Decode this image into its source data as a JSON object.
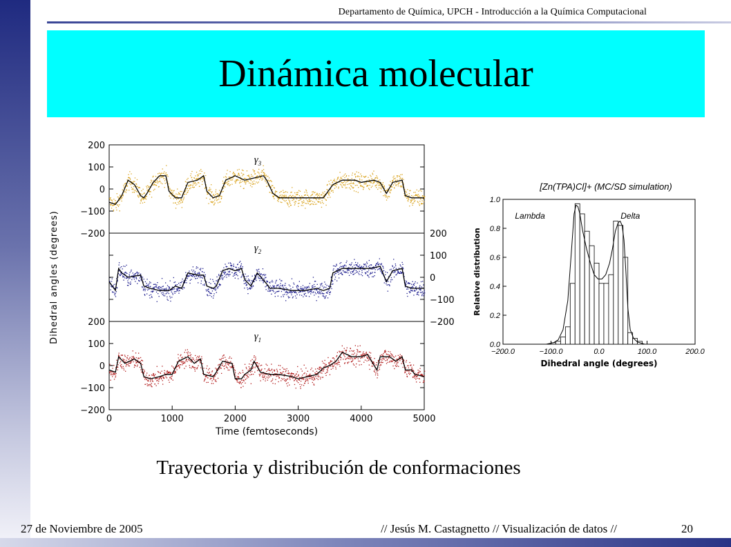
{
  "slide": {
    "header": "Departamento de Química, UPCH - Introducción a la Química Computacional",
    "title": "Dinámica molecular",
    "caption": "Trayectoria y distribución de conformaciones",
    "footer_date": "27 de Noviembre de 2005",
    "footer_author": "// Jesús M. Castagnetto // Visualización de datos //",
    "page_number": "20"
  },
  "chart_data": [
    {
      "type": "scatter",
      "ylabel": "Dihedral angles (degrees)",
      "xlabel": "Time (femtoseconds)",
      "xlim": [
        0,
        5000
      ],
      "x_ticks": [
        "0",
        "1000",
        "2000",
        "3000",
        "4000",
        "5000"
      ],
      "panels": [
        {
          "name": "γ3",
          "color": "#d9a21b",
          "ylim": [
            -200,
            200
          ],
          "y_ticks": [
            "200",
            "100",
            "0",
            "−100",
            "−200"
          ],
          "y_axis_side": "left",
          "trend": [
            [
              0,
              -60
            ],
            [
              100,
              -70
            ],
            [
              200,
              -30
            ],
            [
              300,
              40
            ],
            [
              400,
              20
            ],
            [
              500,
              -30
            ],
            [
              550,
              -40
            ],
            [
              600,
              -20
            ],
            [
              700,
              30
            ],
            [
              800,
              60
            ],
            [
              900,
              60
            ],
            [
              950,
              -10
            ],
            [
              1050,
              -40
            ],
            [
              1150,
              -40
            ],
            [
              1250,
              30
            ],
            [
              1400,
              40
            ],
            [
              1500,
              60
            ],
            [
              1550,
              -10
            ],
            [
              1650,
              -40
            ],
            [
              1750,
              -30
            ],
            [
              1850,
              40
            ],
            [
              2000,
              60
            ],
            [
              2150,
              40
            ],
            [
              2300,
              50
            ],
            [
              2450,
              60
            ],
            [
              2500,
              40
            ],
            [
              2600,
              -20
            ],
            [
              2700,
              -40
            ],
            [
              2800,
              -40
            ],
            [
              3000,
              -40
            ],
            [
              3100,
              -40
            ],
            [
              3250,
              -40
            ],
            [
              3400,
              -40
            ],
            [
              3550,
              20
            ],
            [
              3700,
              40
            ],
            [
              3900,
              40
            ],
            [
              4000,
              30
            ],
            [
              4200,
              40
            ],
            [
              4300,
              30
            ],
            [
              4400,
              -20
            ],
            [
              4500,
              30
            ],
            [
              4650,
              40
            ],
            [
              4700,
              -30
            ],
            [
              4800,
              -40
            ],
            [
              5000,
              -40
            ]
          ]
        },
        {
          "name": "γ2",
          "color": "#1a1a8c",
          "ylim": [
            -200,
            200
          ],
          "y_ticks": [
            "200",
            "100",
            "0",
            "−100",
            "−200"
          ],
          "y_axis_side": "right",
          "trend": [
            [
              0,
              -20
            ],
            [
              100,
              -60
            ],
            [
              150,
              40
            ],
            [
              200,
              20
            ],
            [
              300,
              0
            ],
            [
              500,
              10
            ],
            [
              550,
              -40
            ],
            [
              650,
              -50
            ],
            [
              800,
              -60
            ],
            [
              950,
              -60
            ],
            [
              1050,
              -40
            ],
            [
              1150,
              -50
            ],
            [
              1250,
              20
            ],
            [
              1400,
              10
            ],
            [
              1500,
              10
            ],
            [
              1550,
              -40
            ],
            [
              1650,
              -50
            ],
            [
              1700,
              -40
            ],
            [
              1800,
              30
            ],
            [
              1900,
              40
            ],
            [
              2000,
              30
            ],
            [
              2100,
              40
            ],
            [
              2150,
              -10
            ],
            [
              2250,
              -40
            ],
            [
              2350,
              20
            ],
            [
              2500,
              -30
            ],
            [
              2550,
              -50
            ],
            [
              2700,
              -50
            ],
            [
              2900,
              -60
            ],
            [
              3000,
              -60
            ],
            [
              3100,
              -60
            ],
            [
              3300,
              -50
            ],
            [
              3400,
              -60
            ],
            [
              3500,
              -50
            ],
            [
              3550,
              20
            ],
            [
              3700,
              40
            ],
            [
              3850,
              40
            ],
            [
              4000,
              40
            ],
            [
              4150,
              40
            ],
            [
              4300,
              50
            ],
            [
              4400,
              -20
            ],
            [
              4500,
              30
            ],
            [
              4650,
              40
            ],
            [
              4700,
              -40
            ],
            [
              4800,
              -50
            ],
            [
              5000,
              -50
            ]
          ]
        },
        {
          "name": "γ1",
          "color": "#b01818",
          "ylim": [
            -200,
            200
          ],
          "y_ticks": [
            "200",
            "100",
            "0",
            "−100",
            "−200"
          ],
          "y_axis_side": "left",
          "trend": [
            [
              0,
              -20
            ],
            [
              100,
              -30
            ],
            [
              150,
              40
            ],
            [
              250,
              10
            ],
            [
              400,
              30
            ],
            [
              500,
              10
            ],
            [
              550,
              -50
            ],
            [
              650,
              -60
            ],
            [
              800,
              -50
            ],
            [
              900,
              -40
            ],
            [
              1000,
              -40
            ],
            [
              1100,
              20
            ],
            [
              1250,
              40
            ],
            [
              1350,
              10
            ],
            [
              1450,
              30
            ],
            [
              1500,
              -40
            ],
            [
              1650,
              -50
            ],
            [
              1700,
              -30
            ],
            [
              1800,
              20
            ],
            [
              1950,
              10
            ],
            [
              2000,
              -60
            ],
            [
              2100,
              -60
            ],
            [
              2150,
              -40
            ],
            [
              2250,
              -20
            ],
            [
              2300,
              20
            ],
            [
              2400,
              -30
            ],
            [
              2550,
              -40
            ],
            [
              2700,
              -40
            ],
            [
              2900,
              -50
            ],
            [
              3000,
              -60
            ],
            [
              3150,
              -50
            ],
            [
              3300,
              -40
            ],
            [
              3400,
              -10
            ],
            [
              3500,
              0
            ],
            [
              3600,
              20
            ],
            [
              3700,
              60
            ],
            [
              3850,
              40
            ],
            [
              4000,
              40
            ],
            [
              4100,
              50
            ],
            [
              4250,
              -20
            ],
            [
              4300,
              40
            ],
            [
              4450,
              40
            ],
            [
              4550,
              20
            ],
            [
              4650,
              40
            ],
            [
              4700,
              -20
            ],
            [
              4800,
              -20
            ],
            [
              4850,
              -40
            ],
            [
              5000,
              -50
            ]
          ]
        }
      ]
    },
    {
      "type": "bar",
      "title": "[Zn(TPA)Cl]+ (MC/SD simulation)",
      "xlabel": "Dihedral angle (degrees)",
      "ylabel": "Relative distribution",
      "xlim": [
        -200,
        200
      ],
      "ylim": [
        0,
        1.0
      ],
      "x_ticks": [
        "−200.0",
        "−100.0",
        "0.0",
        "100.0",
        "200.0"
      ],
      "y_ticks": [
        "0.0",
        "0.2",
        "0.4",
        "0.6",
        "0.8",
        "1.0"
      ],
      "annotations": [
        "Lambda",
        "Delta"
      ],
      "bin_width": 10,
      "bins": [
        [
          -100,
          0.01
        ],
        [
          -90,
          0.02
        ],
        [
          -80,
          0.05
        ],
        [
          -70,
          0.12
        ],
        [
          -60,
          0.42
        ],
        [
          -50,
          0.97
        ],
        [
          -40,
          0.9
        ],
        [
          -30,
          0.78
        ],
        [
          -20,
          0.68
        ],
        [
          -10,
          0.56
        ],
        [
          0,
          0.42
        ],
        [
          10,
          0.42
        ],
        [
          20,
          0.48
        ],
        [
          30,
          0.85
        ],
        [
          40,
          0.82
        ],
        [
          50,
          0.6
        ],
        [
          60,
          0.08
        ],
        [
          70,
          0.04
        ],
        [
          80,
          0.02
        ]
      ],
      "fit_curve": [
        [
          -110,
          0.0
        ],
        [
          -95,
          0.01
        ],
        [
          -85,
          0.03
        ],
        [
          -75,
          0.1
        ],
        [
          -65,
          0.3
        ],
        [
          -58,
          0.62
        ],
        [
          -52,
          0.9
        ],
        [
          -48,
          0.96
        ],
        [
          -44,
          0.95
        ],
        [
          -40,
          0.9
        ],
        [
          -34,
          0.78
        ],
        [
          -26,
          0.66
        ],
        [
          -18,
          0.56
        ],
        [
          -10,
          0.48
        ],
        [
          -2,
          0.45
        ],
        [
          6,
          0.45
        ],
        [
          14,
          0.48
        ],
        [
          22,
          0.56
        ],
        [
          28,
          0.66
        ],
        [
          34,
          0.78
        ],
        [
          40,
          0.84
        ],
        [
          44,
          0.85
        ],
        [
          48,
          0.82
        ],
        [
          52,
          0.72
        ],
        [
          56,
          0.5
        ],
        [
          60,
          0.25
        ],
        [
          65,
          0.1
        ],
        [
          72,
          0.04
        ],
        [
          80,
          0.015
        ],
        [
          95,
          0.0
        ]
      ]
    }
  ]
}
